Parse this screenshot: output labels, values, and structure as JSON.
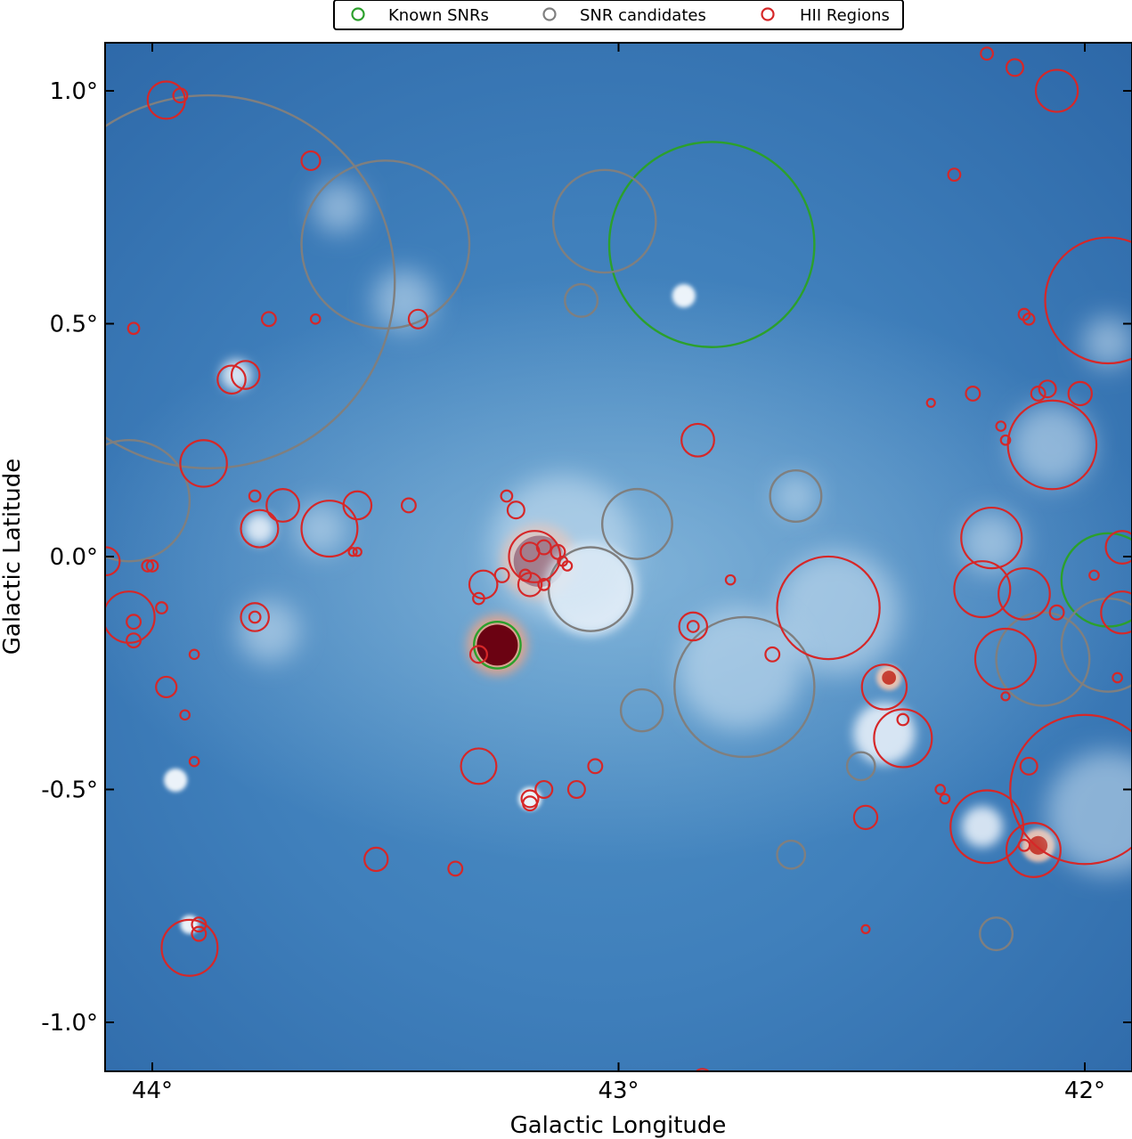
{
  "chart_data": {
    "type": "scatter",
    "xlabel": "Galactic Longitude",
    "ylabel": "Galactic Latitude",
    "xlim": [
      44.1,
      41.9
    ],
    "ylim": [
      -1.1,
      1.1
    ],
    "x_ticks": [
      44,
      43,
      42
    ],
    "x_tick_labels": [
      "44°",
      "43°",
      "42°"
    ],
    "y_ticks": [
      1.0,
      0.5,
      0.0,
      -0.5,
      -1.0
    ],
    "y_tick_labels": [
      "1.0°",
      "0.5°",
      "0.0°",
      "-0.5°",
      "-1.0°"
    ],
    "legend_placement": "top-center, above plot",
    "background": "radio continuum intensity map (blue colormap, bright emission white, strongest peaks dark red)",
    "series": [
      {
        "name": "Known SNRs",
        "color": "#2ca02c",
        "points": [
          {
            "l": 42.8,
            "b": 0.67,
            "r": 0.22
          },
          {
            "l": 43.26,
            "b": -0.19,
            "r": 0.05
          },
          {
            "l": 41.95,
            "b": -0.05,
            "r": 0.1
          }
        ]
      },
      {
        "name": "SNR candidates",
        "color": "#7f7f7f",
        "points": [
          {
            "l": 43.88,
            "b": 0.59,
            "r": 0.4
          },
          {
            "l": 44.05,
            "b": 0.12,
            "r": 0.13
          },
          {
            "l": 43.5,
            "b": 0.67,
            "r": 0.18
          },
          {
            "l": 43.03,
            "b": 0.72,
            "r": 0.11
          },
          {
            "l": 43.08,
            "b": 0.55,
            "r": 0.035
          },
          {
            "l": 42.96,
            "b": 0.07,
            "r": 0.075
          },
          {
            "l": 43.06,
            "b": -0.07,
            "r": 0.09
          },
          {
            "l": 42.95,
            "b": -0.33,
            "r": 0.045
          },
          {
            "l": 42.73,
            "b": -0.28,
            "r": 0.15
          },
          {
            "l": 42.62,
            "b": 0.13,
            "r": 0.055
          },
          {
            "l": 42.48,
            "b": -0.45,
            "r": 0.03
          },
          {
            "l": 42.63,
            "b": -0.64,
            "r": 0.03
          },
          {
            "l": 42.09,
            "b": -0.22,
            "r": 0.1
          },
          {
            "l": 41.95,
            "b": -0.19,
            "r": 0.1
          },
          {
            "l": 42.19,
            "b": -0.81,
            "r": 0.035
          }
        ]
      },
      {
        "name": "HII Regions",
        "color": "#d62728",
        "points": [
          {
            "l": 43.97,
            "b": 0.98,
            "r": 0.04
          },
          {
            "l": 43.94,
            "b": 0.99,
            "r": 0.015
          },
          {
            "l": 43.66,
            "b": 0.85,
            "r": 0.02
          },
          {
            "l": 43.75,
            "b": 0.51,
            "r": 0.015
          },
          {
            "l": 43.83,
            "b": 0.38,
            "r": 0.03
          },
          {
            "l": 43.8,
            "b": 0.39,
            "r": 0.03
          },
          {
            "l": 43.65,
            "b": 0.51,
            "r": 0.01
          },
          {
            "l": 43.43,
            "b": 0.51,
            "r": 0.02
          },
          {
            "l": 44.04,
            "b": 0.49,
            "r": 0.012
          },
          {
            "l": 43.89,
            "b": 0.2,
            "r": 0.05
          },
          {
            "l": 43.78,
            "b": 0.13,
            "r": 0.012
          },
          {
            "l": 43.72,
            "b": 0.11,
            "r": 0.035
          },
          {
            "l": 43.77,
            "b": 0.06,
            "r": 0.04
          },
          {
            "l": 43.62,
            "b": 0.06,
            "r": 0.06
          },
          {
            "l": 43.56,
            "b": 0.11,
            "r": 0.03
          },
          {
            "l": 43.45,
            "b": 0.11,
            "r": 0.015
          },
          {
            "l": 43.57,
            "b": 0.01,
            "r": 0.008
          },
          {
            "l": 43.56,
            "b": 0.01,
            "r": 0.008
          },
          {
            "l": 44.1,
            "b": -0.01,
            "r": 0.03
          },
          {
            "l": 44.0,
            "b": -0.02,
            "r": 0.012
          },
          {
            "l": 44.01,
            "b": -0.02,
            "r": 0.012
          },
          {
            "l": 44.05,
            "b": -0.13,
            "r": 0.055
          },
          {
            "l": 44.04,
            "b": -0.14,
            "r": 0.015
          },
          {
            "l": 44.04,
            "b": -0.18,
            "r": 0.015
          },
          {
            "l": 43.98,
            "b": -0.11,
            "r": 0.012
          },
          {
            "l": 43.78,
            "b": -0.13,
            "r": 0.03
          },
          {
            "l": 43.78,
            "b": -0.13,
            "r": 0.012
          },
          {
            "l": 43.91,
            "b": -0.21,
            "r": 0.01
          },
          {
            "l": 43.97,
            "b": -0.28,
            "r": 0.022
          },
          {
            "l": 43.93,
            "b": -0.34,
            "r": 0.01
          },
          {
            "l": 43.91,
            "b": -0.44,
            "r": 0.01
          },
          {
            "l": 43.92,
            "b": -0.84,
            "r": 0.06
          },
          {
            "l": 43.9,
            "b": -0.79,
            "r": 0.015
          },
          {
            "l": 43.9,
            "b": -0.81,
            "r": 0.015
          },
          {
            "l": 43.52,
            "b": -0.65,
            "r": 0.025
          },
          {
            "l": 43.35,
            "b": -0.67,
            "r": 0.015
          },
          {
            "l": 43.24,
            "b": 0.13,
            "r": 0.012
          },
          {
            "l": 43.22,
            "b": 0.1,
            "r": 0.018
          },
          {
            "l": 43.18,
            "b": 0.0,
            "r": 0.055
          },
          {
            "l": 43.19,
            "b": 0.01,
            "r": 0.02
          },
          {
            "l": 43.16,
            "b": 0.02,
            "r": 0.015
          },
          {
            "l": 43.13,
            "b": 0.01,
            "r": 0.015
          },
          {
            "l": 43.12,
            "b": -0.01,
            "r": 0.01
          },
          {
            "l": 43.11,
            "b": -0.02,
            "r": 0.01
          },
          {
            "l": 43.25,
            "b": -0.04,
            "r": 0.015
          },
          {
            "l": 43.29,
            "b": -0.06,
            "r": 0.03
          },
          {
            "l": 43.19,
            "b": -0.06,
            "r": 0.025
          },
          {
            "l": 43.2,
            "b": -0.04,
            "r": 0.012
          },
          {
            "l": 43.16,
            "b": -0.06,
            "r": 0.012
          },
          {
            "l": 43.3,
            "b": -0.09,
            "r": 0.012
          },
          {
            "l": 43.3,
            "b": -0.21,
            "r": 0.018
          },
          {
            "l": 43.3,
            "b": -0.45,
            "r": 0.038
          },
          {
            "l": 43.16,
            "b": -0.5,
            "r": 0.018
          },
          {
            "l": 43.19,
            "b": -0.52,
            "r": 0.018
          },
          {
            "l": 43.19,
            "b": -0.53,
            "r": 0.015
          },
          {
            "l": 43.09,
            "b": -0.5,
            "r": 0.018
          },
          {
            "l": 43.05,
            "b": -0.45,
            "r": 0.015
          },
          {
            "l": 42.83,
            "b": 0.25,
            "r": 0.035
          },
          {
            "l": 42.84,
            "b": -0.15,
            "r": 0.03
          },
          {
            "l": 42.84,
            "b": -0.15,
            "r": 0.012
          },
          {
            "l": 42.76,
            "b": -0.05,
            "r": 0.01
          },
          {
            "l": 42.67,
            "b": -0.21,
            "r": 0.015
          },
          {
            "l": 42.55,
            "b": -0.11,
            "r": 0.11
          },
          {
            "l": 42.43,
            "b": -0.28,
            "r": 0.048
          },
          {
            "l": 42.39,
            "b": -0.39,
            "r": 0.062
          },
          {
            "l": 42.39,
            "b": -0.35,
            "r": 0.012
          },
          {
            "l": 42.47,
            "b": -0.56,
            "r": 0.025
          },
          {
            "l": 42.47,
            "b": -0.8,
            "r": 0.008
          },
          {
            "l": 42.33,
            "b": 0.33,
            "r": 0.008
          },
          {
            "l": 42.28,
            "b": 0.82,
            "r": 0.013
          },
          {
            "l": 42.21,
            "b": 1.08,
            "r": 0.013
          },
          {
            "l": 42.15,
            "b": 1.05,
            "r": 0.018
          },
          {
            "l": 42.06,
            "b": 1.0,
            "r": 0.045
          },
          {
            "l": 41.95,
            "b": 0.55,
            "r": 0.135
          },
          {
            "l": 42.13,
            "b": 0.52,
            "r": 0.012
          },
          {
            "l": 42.12,
            "b": 0.51,
            "r": 0.012
          },
          {
            "l": 42.24,
            "b": 0.35,
            "r": 0.015
          },
          {
            "l": 42.1,
            "b": 0.35,
            "r": 0.015
          },
          {
            "l": 42.08,
            "b": 0.36,
            "r": 0.018
          },
          {
            "l": 42.01,
            "b": 0.35,
            "r": 0.025
          },
          {
            "l": 42.07,
            "b": 0.24,
            "r": 0.095
          },
          {
            "l": 42.18,
            "b": 0.28,
            "r": 0.01
          },
          {
            "l": 42.17,
            "b": 0.25,
            "r": 0.01
          },
          {
            "l": 42.2,
            "b": 0.04,
            "r": 0.065
          },
          {
            "l": 42.22,
            "b": -0.07,
            "r": 0.06
          },
          {
            "l": 42.13,
            "b": -0.08,
            "r": 0.055
          },
          {
            "l": 42.17,
            "b": -0.22,
            "r": 0.065
          },
          {
            "l": 42.17,
            "b": -0.3,
            "r": 0.008
          },
          {
            "l": 42.06,
            "b": -0.12,
            "r": 0.015
          },
          {
            "l": 41.92,
            "b": 0.02,
            "r": 0.035
          },
          {
            "l": 41.92,
            "b": -0.12,
            "r": 0.045
          },
          {
            "l": 41.98,
            "b": -0.04,
            "r": 0.01
          },
          {
            "l": 41.93,
            "b": -0.26,
            "r": 0.01
          },
          {
            "l": 42.0,
            "b": -0.5,
            "r": 0.16
          },
          {
            "l": 42.12,
            "b": -0.45,
            "r": 0.018
          },
          {
            "l": 42.21,
            "b": -0.58,
            "r": 0.078
          },
          {
            "l": 42.11,
            "b": -0.63,
            "r": 0.058
          },
          {
            "l": 42.13,
            "b": -0.62,
            "r": 0.012
          },
          {
            "l": 42.31,
            "b": -0.5,
            "r": 0.01
          },
          {
            "l": 42.3,
            "b": -0.52,
            "r": 0.01
          },
          {
            "l": 42.82,
            "b": -1.12,
            "r": 0.02
          }
        ]
      }
    ],
    "background_blobs": [
      {
        "l": 43.17,
        "b": -0.01,
        "r": 0.05,
        "kind": "saturated"
      },
      {
        "l": 43.26,
        "b": -0.19,
        "r": 0.04,
        "kind": "saturated"
      },
      {
        "l": 42.42,
        "b": -0.26,
        "r": 0.015,
        "kind": "hot"
      },
      {
        "l": 42.1,
        "b": -0.62,
        "r": 0.02,
        "kind": "hot"
      },
      {
        "l": 43.06,
        "b": -0.07,
        "r": 0.09,
        "kind": "bright"
      },
      {
        "l": 43.12,
        "b": 0.02,
        "r": 0.14,
        "kind": "diffuse"
      },
      {
        "l": 42.53,
        "b": -0.12,
        "r": 0.12,
        "kind": "diffuse"
      },
      {
        "l": 42.43,
        "b": -0.38,
        "r": 0.06,
        "kind": "bright"
      },
      {
        "l": 42.07,
        "b": 0.24,
        "r": 0.08,
        "kind": "diffuse"
      },
      {
        "l": 42.2,
        "b": 0.03,
        "r": 0.06,
        "kind": "diffuse"
      },
      {
        "l": 41.95,
        "b": -0.55,
        "r": 0.12,
        "kind": "diffuse"
      },
      {
        "l": 42.22,
        "b": -0.58,
        "r": 0.04,
        "kind": "bright"
      },
      {
        "l": 42.86,
        "b": 0.56,
        "r": 0.025,
        "kind": "point"
      },
      {
        "l": 43.77,
        "b": 0.06,
        "r": 0.03,
        "kind": "bright"
      },
      {
        "l": 43.82,
        "b": 0.39,
        "r": 0.03,
        "kind": "bright"
      },
      {
        "l": 43.95,
        "b": -0.48,
        "r": 0.025,
        "kind": "point"
      },
      {
        "l": 43.92,
        "b": -0.79,
        "r": 0.02,
        "kind": "point"
      },
      {
        "l": 43.19,
        "b": -0.52,
        "r": 0.025,
        "kind": "point"
      },
      {
        "l": 43.64,
        "b": 0.06,
        "r": 0.05,
        "kind": "diffuse"
      },
      {
        "l": 42.62,
        "b": 0.13,
        "r": 0.04,
        "kind": "diffuse"
      },
      {
        "l": 42.74,
        "b": -0.24,
        "r": 0.12,
        "kind": "diffuse"
      },
      {
        "l": 43.46,
        "b": 0.55,
        "r": 0.06,
        "kind": "diffuse"
      },
      {
        "l": 43.6,
        "b": 0.75,
        "r": 0.05,
        "kind": "diffuse"
      },
      {
        "l": 43.75,
        "b": -0.16,
        "r": 0.06,
        "kind": "diffuse"
      },
      {
        "l": 41.95,
        "b": 0.46,
        "r": 0.05,
        "kind": "diffuse"
      }
    ]
  }
}
